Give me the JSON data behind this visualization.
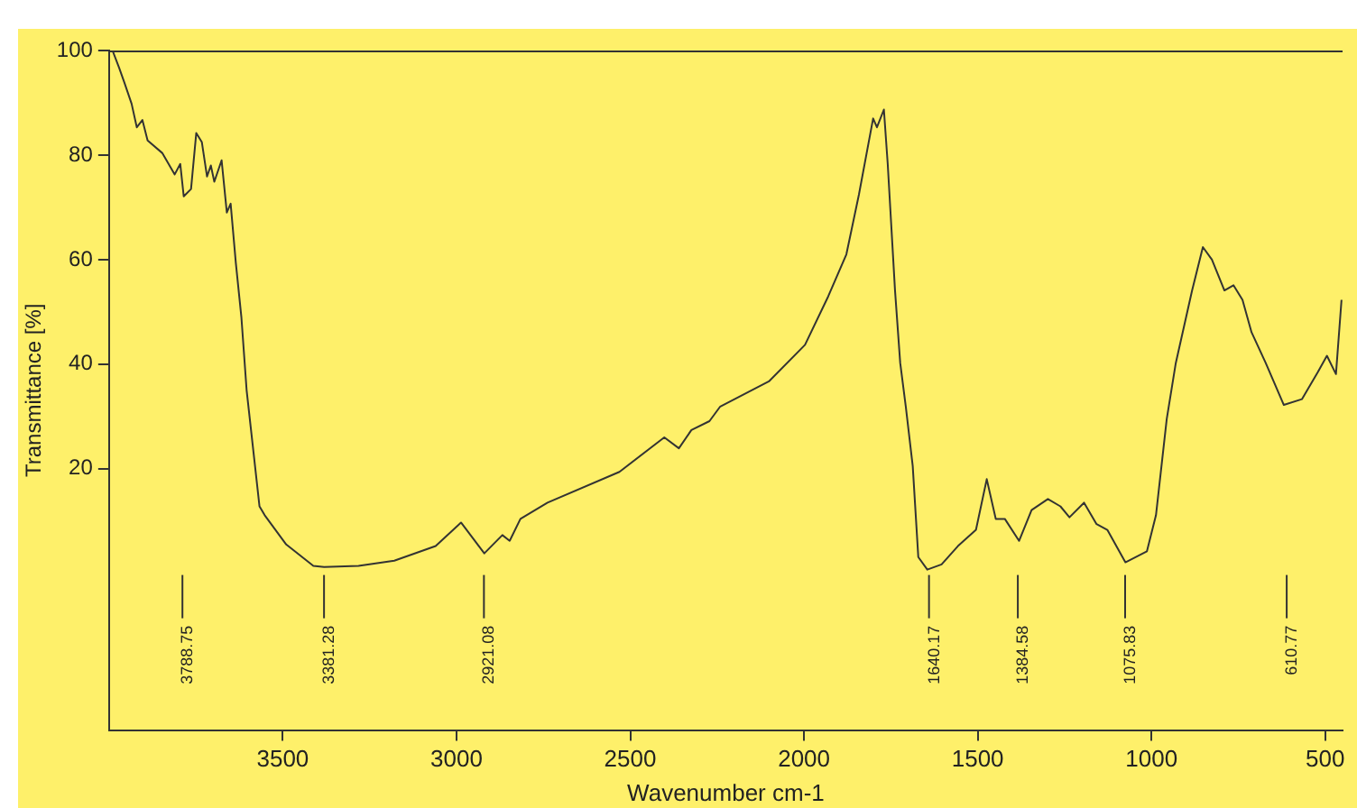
{
  "chart_data": {
    "type": "line",
    "xlabel": "Wavenumber cm-1",
    "ylabel": "Transmittance [%]",
    "x": [
      3990,
      3971,
      3956,
      3935,
      3920,
      3904,
      3889,
      3847,
      3811,
      3795,
      3785,
      3764,
      3749,
      3733,
      3718,
      3707,
      3697,
      3676,
      3661,
      3650,
      3635,
      3619,
      3604,
      3567,
      3552,
      3490,
      3412,
      3381,
      3282,
      3179,
      3060,
      2987,
      2920,
      2868,
      2847,
      2816,
      2738,
      2531,
      2402,
      2360,
      2324,
      2272,
      2241,
      2101,
      1997,
      1930,
      1878,
      1842,
      1801,
      1790,
      1770,
      1759,
      1738,
      1723,
      1707,
      1687,
      1671,
      1645,
      1604,
      1557,
      1505,
      1474,
      1448,
      1422,
      1381,
      1345,
      1298,
      1262,
      1236,
      1194,
      1158,
      1127,
      1075,
      1013,
      987,
      956,
      930,
      883,
      852,
      826,
      790,
      764,
      738,
      712,
      671,
      619,
      567,
      521,
      495,
      469,
      453
    ],
    "series": [
      {
        "color": "#333333",
        "values": [
          100,
          96.7,
          93.9,
          89.8,
          85.3,
          86.7,
          82.8,
          80.4,
          76.3,
          78.3,
          72.1,
          73.5,
          84.2,
          82.5,
          75.9,
          78,
          74.9,
          79,
          69,
          70.7,
          59.3,
          48.9,
          35,
          12.8,
          11.1,
          5.5,
          1.4,
          1.2,
          1.4,
          2.4,
          5.2,
          9.7,
          3.8,
          7.3,
          6.2,
          10.4,
          13.5,
          19.4,
          26,
          23.9,
          27.4,
          29.1,
          31.9,
          36.7,
          43.7,
          53,
          61,
          72.4,
          87,
          85.3,
          88.7,
          78.3,
          54.1,
          40.2,
          31.9,
          20.5,
          3.1,
          0.7,
          1.7,
          5.2,
          8.3,
          18,
          10.4,
          10.4,
          6.2,
          12.1,
          14.2,
          12.8,
          10.7,
          13.5,
          9.4,
          8.3,
          2.1,
          4.2,
          11.1,
          29.5,
          40.2,
          54.1,
          62.4,
          60,
          54.1,
          55.1,
          52.3,
          46.1,
          40.2,
          32.2,
          33.3,
          38.5,
          41.6,
          38.1,
          52.3
        ]
      }
    ],
    "xlim": [
      4000,
      450
    ],
    "xticks": [
      3500,
      3000,
      2500,
      2000,
      1500,
      1000,
      500
    ],
    "ylim": [
      -30,
      100
    ],
    "yticks": [
      20,
      40,
      60,
      80,
      100
    ],
    "annotations": [
      {
        "text": "3788.75",
        "x": 3788.75
      },
      {
        "text": "3381.28",
        "x": 3381.28
      },
      {
        "text": "2921.08",
        "x": 2921.08
      },
      {
        "text": "1640.17",
        "x": 1640.17
      },
      {
        "text": "1384.58",
        "x": 1384.58
      },
      {
        "text": "1075.83",
        "x": 1075.83
      },
      {
        "text": "610.77",
        "x": 610.77
      }
    ],
    "grid": false,
    "legend": false,
    "marker": "none",
    "line_style": "solid"
  }
}
